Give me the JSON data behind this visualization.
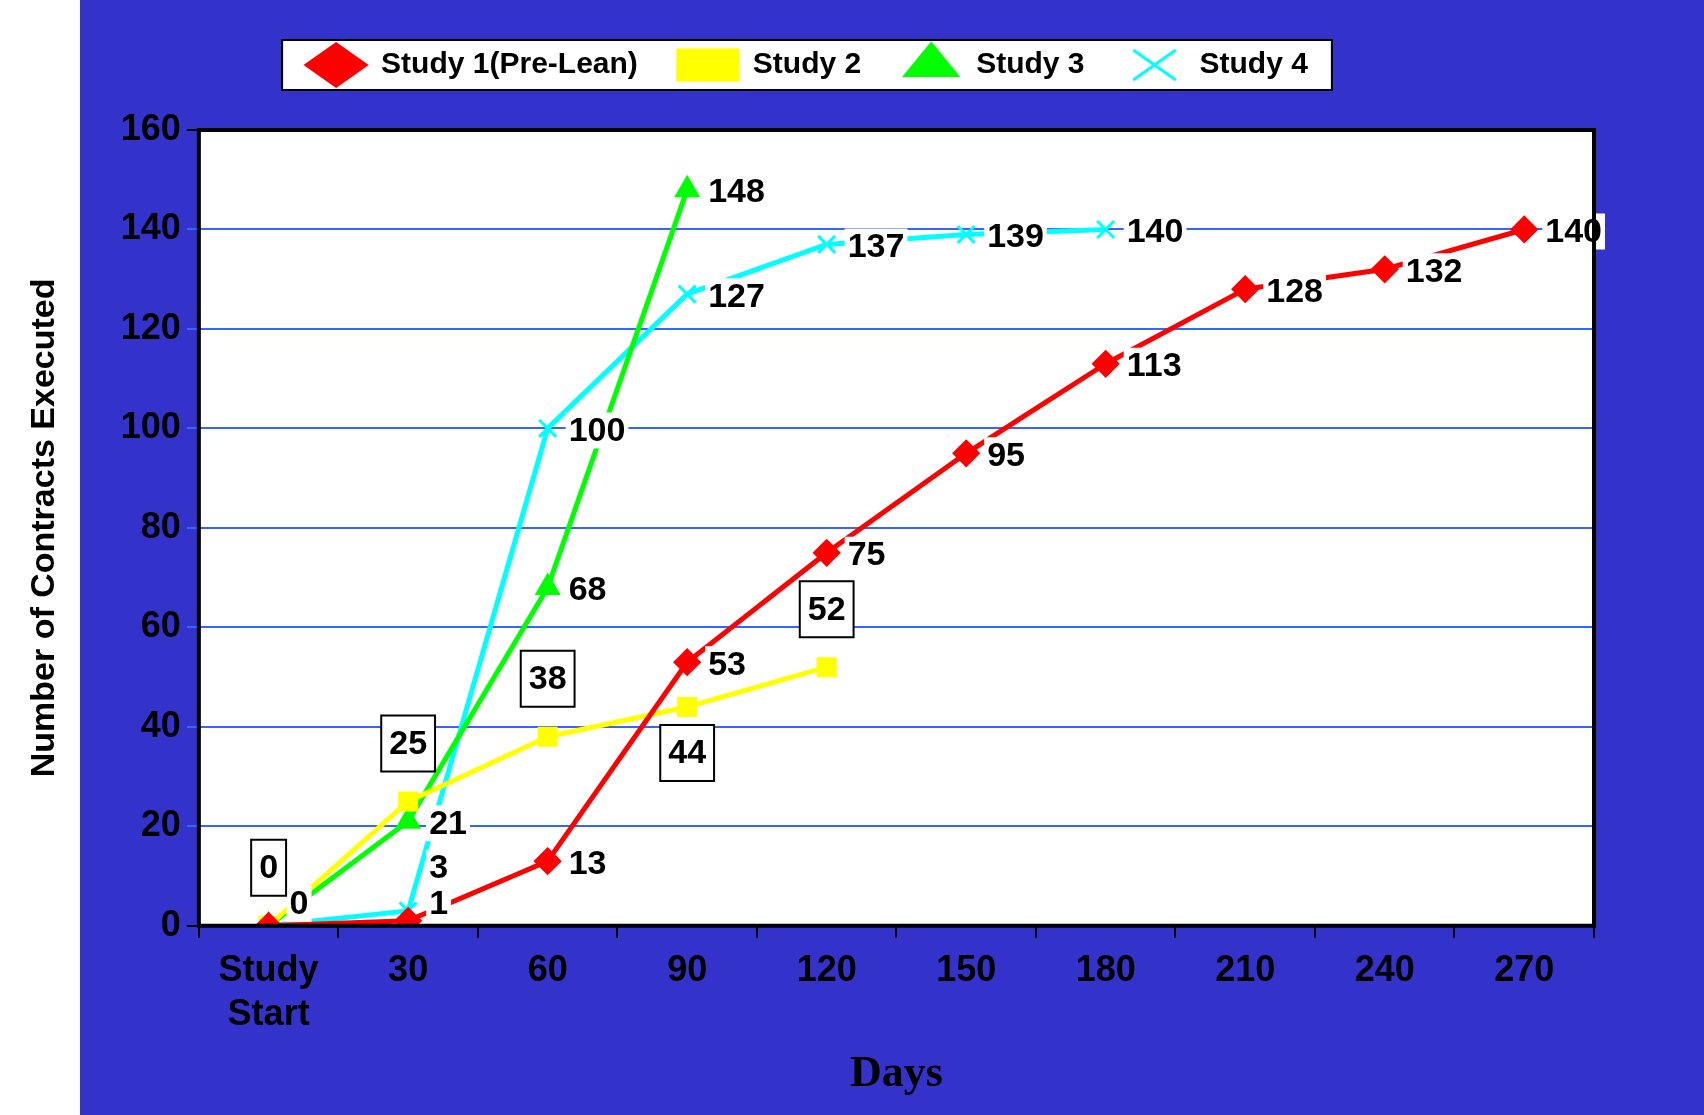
{
  "chart_data": {
    "type": "line",
    "xlabel": "Days",
    "ylabel": "Number of Contracts Executed",
    "categories": [
      "Study Start",
      "30",
      "60",
      "90",
      "120",
      "150",
      "180",
      "210",
      "240",
      "270"
    ],
    "ylim": [
      0,
      160
    ],
    "yticks": [
      0,
      20,
      40,
      60,
      80,
      100,
      120,
      140,
      160
    ],
    "grid": "y",
    "legend": "top",
    "series": [
      {
        "name": "Study 1(Pre-Lean)",
        "color": "#ff0000",
        "marker": "diamond",
        "data_labels": "right",
        "values": [
          0,
          1,
          13,
          53,
          75,
          95,
          113,
          128,
          132,
          140
        ],
        "value_labels": [
          "0",
          "1",
          "13",
          "53",
          "75",
          "95",
          "113",
          "128",
          "132",
          "140"
        ]
      },
      {
        "name": "Study 2",
        "color": "#ffff00",
        "marker": "square",
        "data_labels": "above",
        "values": [
          0,
          25,
          38,
          44,
          52,
          null,
          null,
          null,
          null,
          null
        ],
        "value_labels": [
          "0",
          "25",
          "38",
          "44",
          "52",
          null,
          null,
          null,
          null,
          null
        ]
      },
      {
        "name": "Study 3",
        "color": "#00ff00",
        "marker": "triangle",
        "data_labels": "right",
        "values": [
          0,
          21,
          68,
          148,
          null,
          null,
          null,
          null,
          null,
          null
        ],
        "value_labels": [
          null,
          "21",
          "68",
          "148",
          null,
          null,
          null,
          null,
          null,
          null
        ]
      },
      {
        "name": "Study 4",
        "color": "#00ffff",
        "marker": "cross",
        "data_labels": "right",
        "values": [
          0,
          3,
          100,
          127,
          137,
          139,
          140,
          null,
          null,
          null
        ],
        "value_labels": [
          null,
          "3",
          "100",
          "127",
          "137",
          "139",
          "140",
          null,
          null,
          null
        ]
      }
    ]
  }
}
